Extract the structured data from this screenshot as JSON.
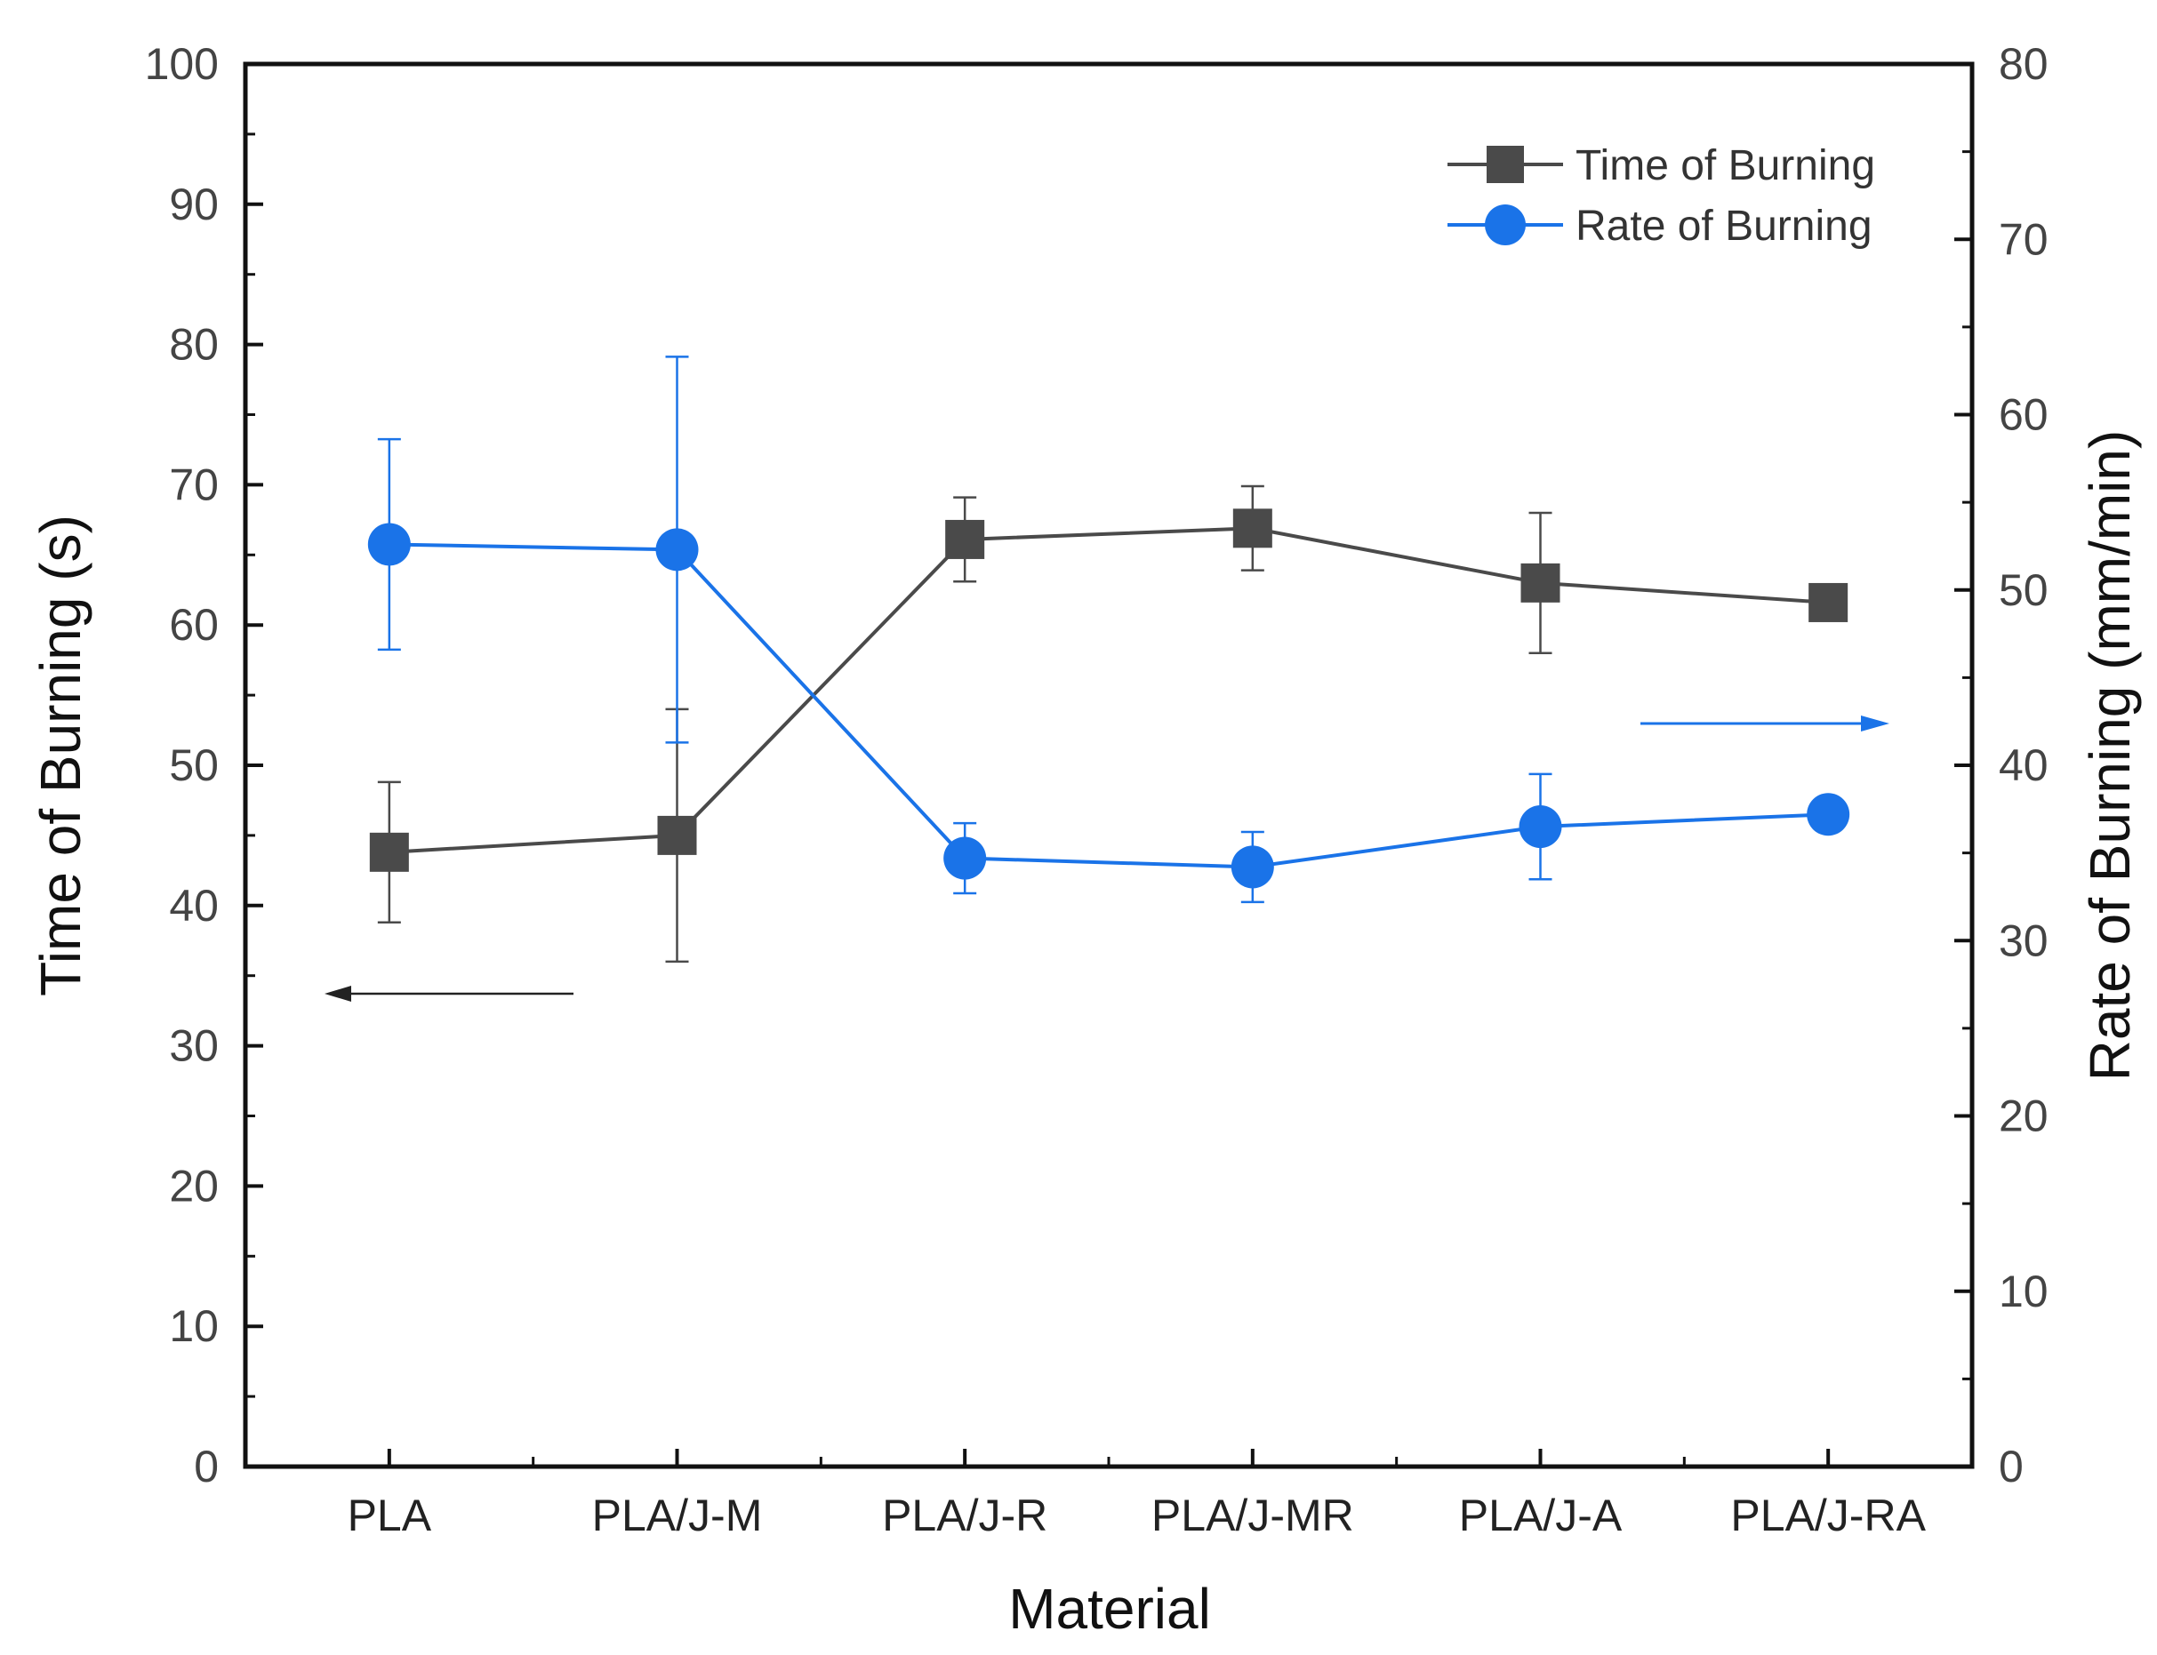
{
  "chart_data": {
    "type": "line",
    "xlabel": "Material",
    "ylabel_left": "Time of Burning (s)",
    "ylabel_right": "Rate of Burning (mm/min)",
    "categories": [
      "PLA",
      "PLA/J-M",
      "PLA/J-R",
      "PLA/J-MR",
      "PLA/J-A",
      "PLA/J-RA"
    ],
    "ylim_left": [
      0,
      100
    ],
    "ylim_right": [
      0,
      80
    ],
    "yticks_left": [
      "0",
      "10",
      "20",
      "30",
      "40",
      "50",
      "60",
      "70",
      "80",
      "90",
      "100"
    ],
    "yticks_right": [
      "0",
      "10",
      "20",
      "30",
      "40",
      "50",
      "60",
      "70",
      "80"
    ],
    "grid": false,
    "legend_position": "top-right",
    "series": [
      {
        "name": "Time of Burning",
        "axis": "left",
        "marker": "square",
        "color": "#4a4a4a",
        "values": [
          43.8,
          45.0,
          66.1,
          66.9,
          63.0,
          61.6
        ],
        "error": [
          5.0,
          9.0,
          3.0,
          3.0,
          5.0,
          0
        ]
      },
      {
        "name": "Rate of Burning",
        "axis": "right",
        "marker": "circle",
        "color": "#1a73e8",
        "values": [
          52.6,
          52.3,
          34.7,
          34.2,
          36.5,
          37.2
        ],
        "error": [
          6.0,
          11.0,
          2.0,
          2.0,
          3.0,
          0
        ]
      }
    ],
    "annotations": [
      {
        "type": "arrow",
        "direction": "left",
        "series": "Time of Burning",
        "color": "#222222"
      },
      {
        "type": "arrow",
        "direction": "right",
        "series": "Rate of Burning",
        "color": "#1a73e8"
      }
    ]
  }
}
